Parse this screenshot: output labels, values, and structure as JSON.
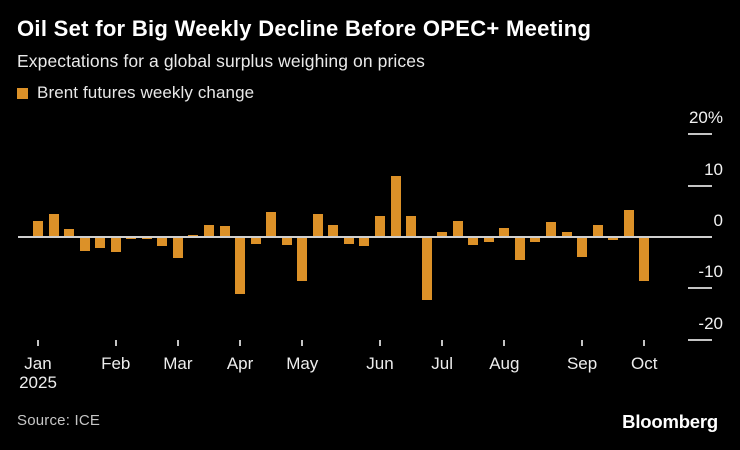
{
  "header": {
    "title": "Oil Set for Big Weekly Decline Before OPEC+ Meeting",
    "subtitle": "Expectations for a global surplus weighing on prices"
  },
  "legend": {
    "label": "Brent futures weekly change",
    "swatch_color": "#DC9128"
  },
  "footer": {
    "source": "Source: ICE",
    "brand": "Bloomberg"
  },
  "colors": {
    "background": "#000000",
    "bar": "#DC9128",
    "axis_line": "#CFCFCF",
    "tick": "#C4C4C4",
    "title_text": "#FFFFFF",
    "body_text": "#EAEAEA",
    "source_text": "#C6C6C6"
  },
  "chart_data": {
    "type": "bar",
    "title": "Brent futures weekly change",
    "unit": "%",
    "ylabel": "",
    "xlabel": "",
    "ylim": [
      -22,
      24
    ],
    "grid": false,
    "legend_position": "top-left",
    "y_ticks": [
      20,
      10,
      0,
      -10,
      -20
    ],
    "y_tick_labels": [
      "20%",
      "10",
      "0",
      "-10",
      "-20"
    ],
    "x_month_labels": [
      "Jan",
      "Feb",
      "Mar",
      "Apr",
      "May",
      "Jun",
      "Jul",
      "Aug",
      "Sep",
      "Oct"
    ],
    "x_year_label": "2025",
    "month_tick_bar_index": [
      0,
      5,
      9,
      13,
      17,
      22,
      26,
      30,
      35,
      39
    ],
    "values": [
      3.1,
      4.5,
      1.5,
      -2.7,
      -2.2,
      -2.9,
      -0.4,
      -0.4,
      -1.8,
      -4.0,
      0.4,
      2.3,
      2.1,
      -11.2,
      -1.3,
      4.9,
      -1.5,
      -8.6,
      4.5,
      2.4,
      -1.3,
      -1.7,
      4.1,
      11.9,
      4.0,
      -12.3,
      1.0,
      3.1,
      -1.6,
      -1.0,
      1.8,
      -4.5,
      -1.0,
      2.9,
      1.0,
      -3.9,
      2.3,
      -0.5,
      5.2,
      -8.6
    ]
  }
}
